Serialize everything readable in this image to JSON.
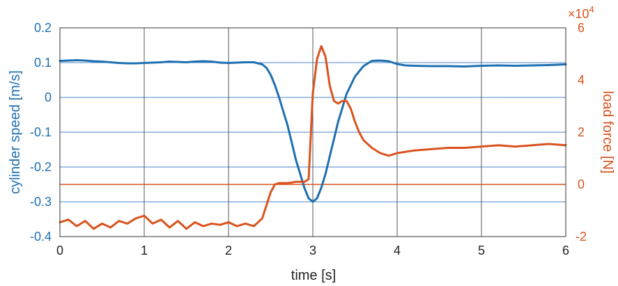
{
  "chart_data": {
    "type": "line",
    "xlabel": "time [s]",
    "ylabel_left": "cylinder speed [m/s]",
    "ylabel_right": "load force [N]",
    "right_exponent": "×10",
    "right_exponent_power": "4",
    "xlim": [
      0,
      6
    ],
    "ylim_left": [
      -0.4,
      0.2
    ],
    "ylim_right": [
      -2,
      6
    ],
    "x_ticks": [
      "0",
      "1",
      "2",
      "3",
      "4",
      "5",
      "6"
    ],
    "y_left_ticks": [
      "0.2",
      "0.1",
      "0",
      "-0.1",
      "-0.2",
      "-0.3",
      "-0.4"
    ],
    "y_right_ticks": [
      "6",
      "4",
      "2",
      "0",
      "-2"
    ],
    "grid": true,
    "colors": {
      "speed": "#1f6fb0",
      "force": "#d9531e",
      "grid_h": "#4a86c8",
      "grid_v": "#555555",
      "zero_force": "#d9531e"
    },
    "series": [
      {
        "axis": "left",
        "x": [
          0,
          0.1,
          0.2,
          0.3,
          0.4,
          0.5,
          0.6,
          0.7,
          0.8,
          0.9,
          1.0,
          1.1,
          1.2,
          1.3,
          1.4,
          1.5,
          1.6,
          1.7,
          1.8,
          1.9,
          2.0,
          2.1,
          2.2,
          2.3,
          2.4,
          2.45,
          2.5,
          2.55,
          2.6,
          2.65,
          2.7,
          2.75,
          2.8,
          2.85,
          2.9,
          2.95,
          3.0,
          3.05,
          3.1,
          3.15,
          3.2,
          3.25,
          3.3,
          3.35,
          3.4,
          3.5,
          3.6,
          3.7,
          3.8,
          3.9,
          4.0,
          4.1,
          4.2,
          4.4,
          4.6,
          4.8,
          5.0,
          5.2,
          5.4,
          5.6,
          5.8,
          6.0
        ],
        "y": [
          0.105,
          0.106,
          0.107,
          0.106,
          0.104,
          0.103,
          0.101,
          0.099,
          0.098,
          0.098,
          0.099,
          0.1,
          0.101,
          0.103,
          0.102,
          0.101,
          0.103,
          0.104,
          0.103,
          0.1,
          0.099,
          0.1,
          0.101,
          0.101,
          0.095,
          0.085,
          0.065,
          0.035,
          0.0,
          -0.04,
          -0.08,
          -0.13,
          -0.18,
          -0.22,
          -0.26,
          -0.29,
          -0.3,
          -0.29,
          -0.26,
          -0.22,
          -0.17,
          -0.12,
          -0.07,
          -0.03,
          0.01,
          0.06,
          0.09,
          0.105,
          0.106,
          0.104,
          0.096,
          0.092,
          0.091,
          0.09,
          0.09,
          0.089,
          0.091,
          0.092,
          0.091,
          0.092,
          0.093,
          0.095
        ]
      },
      {
        "axis": "right",
        "x": [
          0,
          0.1,
          0.2,
          0.3,
          0.4,
          0.5,
          0.6,
          0.7,
          0.8,
          0.9,
          1.0,
          1.1,
          1.2,
          1.3,
          1.4,
          1.5,
          1.6,
          1.7,
          1.8,
          1.9,
          2.0,
          2.1,
          2.2,
          2.3,
          2.4,
          2.45,
          2.5,
          2.55,
          2.6,
          2.7,
          2.8,
          2.9,
          2.95,
          3.0,
          3.05,
          3.1,
          3.15,
          3.2,
          3.25,
          3.3,
          3.35,
          3.4,
          3.45,
          3.5,
          3.55,
          3.6,
          3.7,
          3.8,
          3.9,
          4.0,
          4.2,
          4.4,
          4.6,
          4.8,
          5.0,
          5.2,
          5.4,
          5.6,
          5.8,
          6.0
        ],
        "y": [
          -1.45,
          -1.35,
          -1.6,
          -1.4,
          -1.7,
          -1.5,
          -1.65,
          -1.4,
          -1.5,
          -1.3,
          -1.2,
          -1.5,
          -1.35,
          -1.65,
          -1.4,
          -1.7,
          -1.45,
          -1.6,
          -1.5,
          -1.55,
          -1.45,
          -1.6,
          -1.5,
          -1.6,
          -1.3,
          -0.8,
          -0.3,
          0.0,
          0.05,
          0.05,
          0.1,
          0.1,
          0.2,
          3.5,
          4.8,
          5.3,
          4.9,
          3.8,
          3.2,
          3.1,
          3.2,
          3.2,
          2.9,
          2.4,
          2.0,
          1.7,
          1.4,
          1.2,
          1.1,
          1.2,
          1.3,
          1.35,
          1.4,
          1.4,
          1.45,
          1.5,
          1.45,
          1.5,
          1.55,
          1.5
        ]
      }
    ]
  }
}
